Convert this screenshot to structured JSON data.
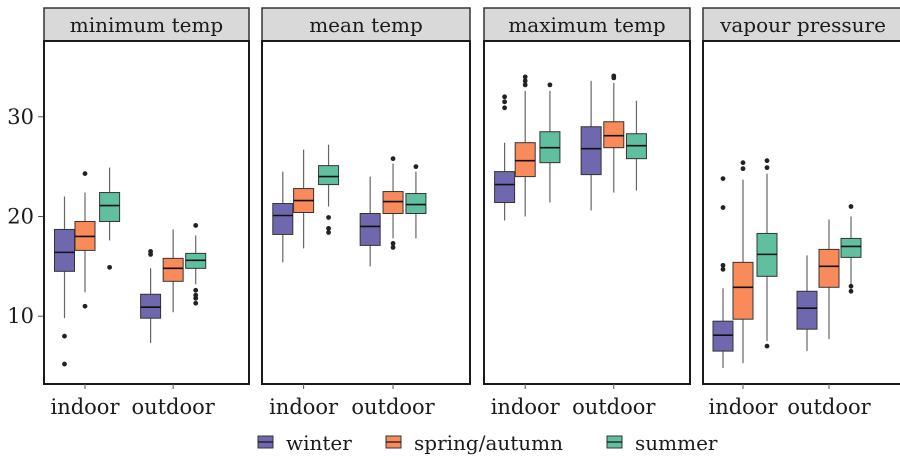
{
  "chart_data": {
    "type": "boxplot",
    "facets": [
      "minimum temp",
      "mean temp",
      "maximum temp",
      "vapour pressure"
    ],
    "categories": [
      "indoor",
      "outdoor"
    ],
    "y_ticks": [
      10,
      20,
      30
    ],
    "ylim": [
      3.2,
      37.6
    ],
    "legend_position": "bottom",
    "series": [
      {
        "name": "winter",
        "color": "#7068ae"
      },
      {
        "name": "spring/autumn",
        "color": "#f98b5b"
      },
      {
        "name": "summer",
        "color": "#5fbf9e"
      }
    ],
    "boxes": [
      {
        "facet": "minimum temp",
        "category": "indoor",
        "series": "winter",
        "whisker_low": 9.8,
        "q1": 14.5,
        "median": 16.4,
        "q3": 18.7,
        "whisker_high": 22.0,
        "outliers": [
          8.0,
          5.2
        ]
      },
      {
        "facet": "minimum temp",
        "category": "indoor",
        "series": "spring/autumn",
        "whisker_low": 12.4,
        "q1": 16.6,
        "median": 18.0,
        "q3": 19.5,
        "whisker_high": 22.4,
        "outliers": [
          24.3,
          11.0
        ]
      },
      {
        "facet": "minimum temp",
        "category": "indoor",
        "series": "summer",
        "whisker_low": 17.6,
        "q1": 19.5,
        "median": 21.1,
        "q3": 22.4,
        "whisker_high": 24.9,
        "outliers": [
          14.9
        ]
      },
      {
        "facet": "minimum temp",
        "category": "outdoor",
        "series": "winter",
        "whisker_low": 7.3,
        "q1": 9.8,
        "median": 10.9,
        "q3": 12.2,
        "whisker_high": 14.8,
        "outliers": [
          16.5,
          16.2
        ]
      },
      {
        "facet": "minimum temp",
        "category": "outdoor",
        "series": "spring/autumn",
        "whisker_low": 10.4,
        "q1": 13.5,
        "median": 14.8,
        "q3": 15.8,
        "whisker_high": 18.7,
        "outliers": []
      },
      {
        "facet": "minimum temp",
        "category": "outdoor",
        "series": "summer",
        "whisker_low": 13.2,
        "q1": 14.8,
        "median": 15.6,
        "q3": 16.3,
        "whisker_high": 18.1,
        "outliers": [
          19.1,
          12.6,
          12.1,
          11.8,
          11.3
        ]
      },
      {
        "facet": "mean temp",
        "category": "indoor",
        "series": "winter",
        "whisker_low": 15.4,
        "q1": 18.2,
        "median": 20.1,
        "q3": 21.3,
        "whisker_high": 24.5,
        "outliers": []
      },
      {
        "facet": "mean temp",
        "category": "indoor",
        "series": "spring/autumn",
        "whisker_low": 16.8,
        "q1": 20.4,
        "median": 21.6,
        "q3": 22.8,
        "whisker_high": 26.7,
        "outliers": []
      },
      {
        "facet": "mean temp",
        "category": "indoor",
        "series": "summer",
        "whisker_low": 21.0,
        "q1": 23.2,
        "median": 24.0,
        "q3": 25.1,
        "whisker_high": 27.2,
        "outliers": [
          19.9,
          18.8,
          18.4
        ]
      },
      {
        "facet": "mean temp",
        "category": "outdoor",
        "series": "winter",
        "whisker_low": 15.0,
        "q1": 17.1,
        "median": 19.0,
        "q3": 20.3,
        "whisker_high": 24.0,
        "outliers": []
      },
      {
        "facet": "mean temp",
        "category": "outdoor",
        "series": "spring/autumn",
        "whisker_low": 17.8,
        "q1": 20.3,
        "median": 21.5,
        "q3": 22.5,
        "whisker_high": 25.3,
        "outliers": [
          25.8,
          17.3,
          16.9
        ]
      },
      {
        "facet": "mean temp",
        "category": "outdoor",
        "series": "summer",
        "whisker_low": 17.8,
        "q1": 20.3,
        "median": 21.2,
        "q3": 22.3,
        "whisker_high": 24.5,
        "outliers": [
          25.0
        ]
      },
      {
        "facet": "maximum temp",
        "category": "indoor",
        "series": "winter",
        "whisker_low": 19.6,
        "q1": 21.4,
        "median": 23.2,
        "q3": 24.5,
        "whisker_high": 27.4,
        "outliers": [
          32.0,
          31.5,
          30.9
        ]
      },
      {
        "facet": "maximum temp",
        "category": "indoor",
        "series": "spring/autumn",
        "whisker_low": 20.0,
        "q1": 24.0,
        "median": 25.6,
        "q3": 27.4,
        "whisker_high": 32.6,
        "outliers": [
          34.0,
          33.6,
          33.2
        ]
      },
      {
        "facet": "maximum temp",
        "category": "indoor",
        "series": "summer",
        "whisker_low": 21.4,
        "q1": 25.4,
        "median": 26.9,
        "q3": 28.5,
        "whisker_high": 32.6,
        "outliers": [
          33.2
        ]
      },
      {
        "facet": "maximum temp",
        "category": "outdoor",
        "series": "winter",
        "whisker_low": 20.6,
        "q1": 24.2,
        "median": 26.8,
        "q3": 29.0,
        "whisker_high": 33.6,
        "outliers": []
      },
      {
        "facet": "maximum temp",
        "category": "outdoor",
        "series": "spring/autumn",
        "whisker_low": 22.4,
        "q1": 26.9,
        "median": 28.1,
        "q3": 29.5,
        "whisker_high": 33.4,
        "outliers": [
          34.1,
          33.9
        ]
      },
      {
        "facet": "maximum temp",
        "category": "outdoor",
        "series": "summer",
        "whisker_low": 22.6,
        "q1": 25.8,
        "median": 27.1,
        "q3": 28.3,
        "whisker_high": 31.6,
        "outliers": []
      },
      {
        "facet": "vapour pressure",
        "category": "indoor",
        "series": "winter",
        "whisker_low": 4.8,
        "q1": 6.5,
        "median": 8.1,
        "q3": 9.5,
        "whisker_high": 12.8,
        "outliers": [
          23.8,
          20.9,
          15.1,
          14.7
        ]
      },
      {
        "facet": "vapour pressure",
        "category": "indoor",
        "series": "spring/autumn",
        "whisker_low": 5.3,
        "q1": 9.7,
        "median": 12.9,
        "q3": 15.4,
        "whisker_high": 23.7,
        "outliers": [
          25.4,
          24.8
        ]
      },
      {
        "facet": "vapour pressure",
        "category": "indoor",
        "series": "summer",
        "whisker_low": 7.5,
        "q1": 14.0,
        "median": 16.2,
        "q3": 18.3,
        "whisker_high": 24.3,
        "outliers": [
          25.6,
          24.9,
          7.0
        ]
      },
      {
        "facet": "vapour pressure",
        "category": "outdoor",
        "series": "winter",
        "whisker_low": 6.5,
        "q1": 8.7,
        "median": 10.8,
        "q3": 12.5,
        "whisker_high": 16.1,
        "outliers": []
      },
      {
        "facet": "vapour pressure",
        "category": "outdoor",
        "series": "spring/autumn",
        "whisker_low": 7.7,
        "q1": 12.9,
        "median": 15.0,
        "q3": 16.7,
        "whisker_high": 19.7,
        "outliers": []
      },
      {
        "facet": "vapour pressure",
        "category": "outdoor",
        "series": "summer",
        "whisker_low": 13.2,
        "q1": 15.9,
        "median": 17.0,
        "q3": 17.8,
        "whisker_high": 20.0,
        "outliers": [
          21.0,
          13.0,
          12.5
        ]
      }
    ]
  }
}
